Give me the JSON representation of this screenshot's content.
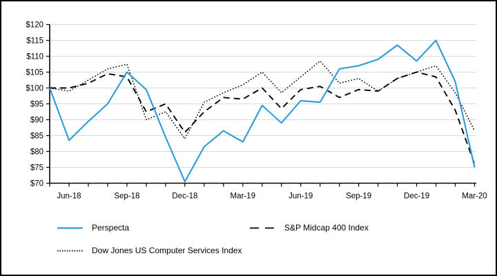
{
  "chart_data": {
    "type": "line",
    "title": "",
    "xlabel": "",
    "ylabel": "",
    "ylim": [
      70,
      120
    ],
    "grid": "horizontal",
    "legend_position": "bottom-left",
    "x": [
      "May-18",
      "Jun-18",
      "Jul-18",
      "Aug-18",
      "Sep-18",
      "Oct-18",
      "Nov-18",
      "Dec-18",
      "Jan-19",
      "Feb-19",
      "Mar-19",
      "Apr-19",
      "May-19",
      "Jun-19",
      "Jul-19",
      "Aug-19",
      "Sep-19",
      "Oct-19",
      "Nov-19",
      "Dec-19",
      "Jan-20",
      "Feb-20",
      "Mar-20"
    ],
    "x_tick_indices": [
      1,
      4,
      7,
      10,
      13,
      16,
      19,
      22
    ],
    "x_axis_tick_labels": [
      "Jun-18",
      "Sep-18",
      "Dec-18",
      "Mar-19",
      "Jun-19",
      "Sep-19",
      "Dec-19",
      "Mar-20"
    ],
    "y_tick_values": [
      70,
      75,
      80,
      85,
      90,
      95,
      100,
      105,
      110,
      115,
      120
    ],
    "y_ticks": [
      "$70",
      "$75",
      "$80",
      "$85",
      "$90",
      "$95",
      "$100",
      "$105",
      "$110",
      "$115",
      "$120"
    ],
    "series": [
      {
        "name": "Perspecta",
        "color": "#2D9BD8",
        "line_style": "solid",
        "values": [
          100,
          83.5,
          89.5,
          95,
          105,
          99.5,
          84.5,
          70.5,
          81.5,
          86.5,
          83,
          94.5,
          89,
          96,
          95.5,
          106,
          107,
          109,
          113.5,
          108.5,
          115,
          102,
          75
        ]
      },
      {
        "name": "S&P Midcap 400 Index",
        "color": "#000000",
        "line_style": "dashed",
        "values": [
          100,
          100,
          101.5,
          104.5,
          103.5,
          92.5,
          95,
          86,
          92.5,
          97,
          96.5,
          100,
          93.5,
          99.5,
          100.5,
          97,
          99.5,
          99,
          103,
          105,
          103.5,
          93,
          76
        ]
      },
      {
        "name": "Dow Jones US Computer Services Index",
        "color": "#000000",
        "line_style": "dotted",
        "values": [
          100,
          99,
          102.5,
          106,
          107.5,
          90,
          92.5,
          84,
          95.5,
          98.5,
          101,
          105,
          98.5,
          103.5,
          108.5,
          101.5,
          103,
          99,
          103,
          105,
          107,
          98.5,
          86.5
        ]
      }
    ],
    "colors": {
      "axis": "#000000",
      "gridline": "#D9D9D9",
      "text": "#000000",
      "background": "#FFFFFF",
      "accent_blue": "#2D9BD8"
    }
  }
}
